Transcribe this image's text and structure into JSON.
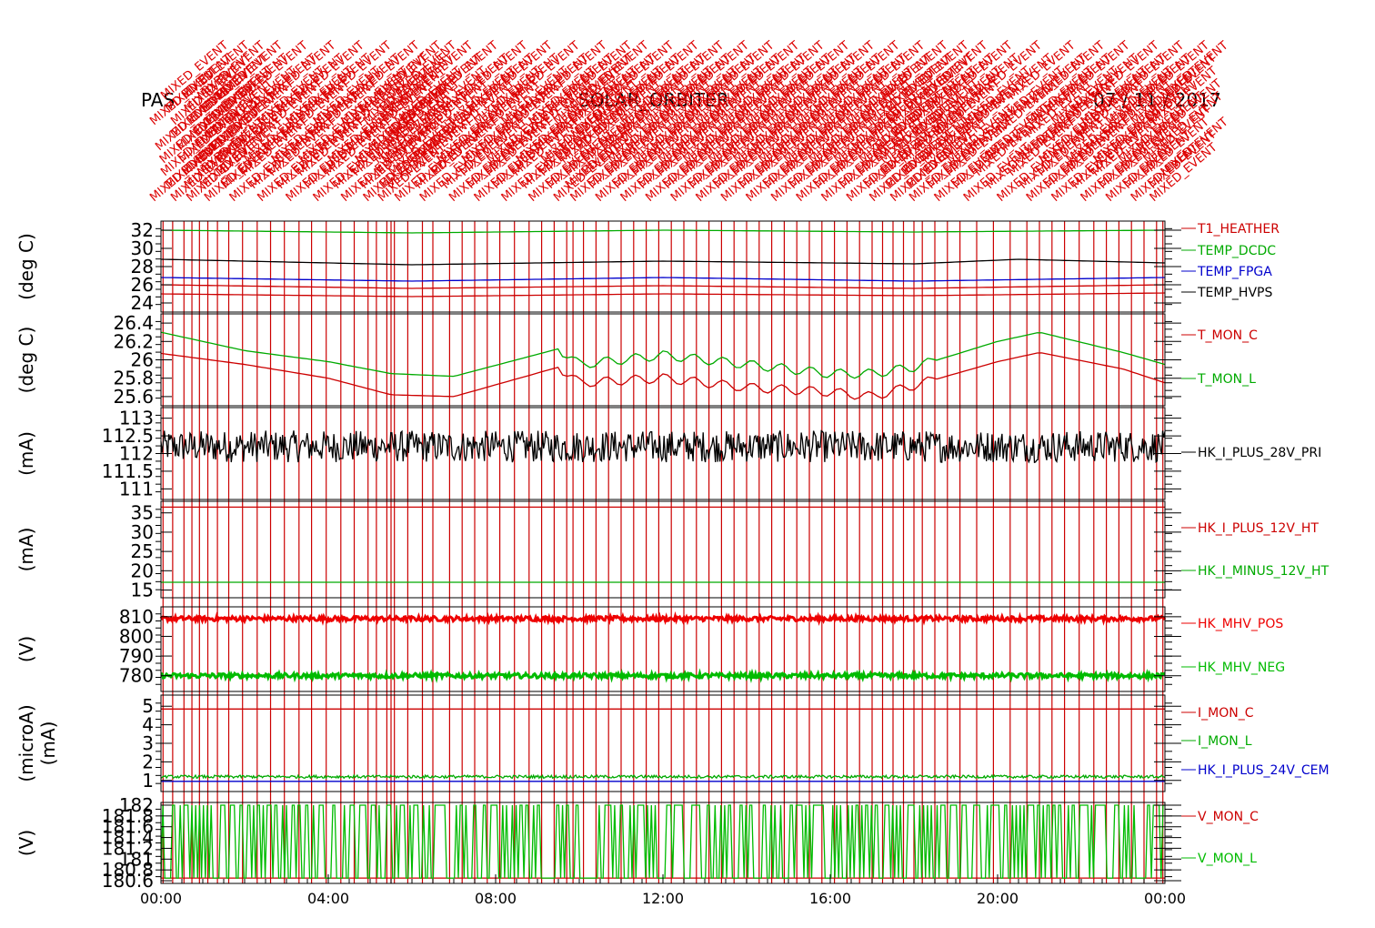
{
  "header": {
    "left": "PAS",
    "center": "SOLAR_ORBITER",
    "right": "07 / 11 / 2017"
  },
  "event_label": "MIXED_EVENT",
  "chart_data": {
    "type": "line",
    "x_ticks": [
      "00:00",
      "04:00",
      "08:00",
      "12:00",
      "16:00",
      "20:00",
      "00:00"
    ],
    "x_range_hours": [
      0,
      24
    ],
    "event_marker_color": "#cc0000",
    "event_times_hours": [
      0.05,
      0.28,
      0.55,
      0.74,
      0.92,
      1.12,
      1.35,
      1.62,
      1.95,
      2.3,
      2.62,
      2.95,
      3.3,
      3.6,
      3.95,
      4.3,
      4.62,
      4.95,
      5.15,
      5.4,
      5.5,
      5.58,
      5.9,
      6.25,
      6.5,
      6.9,
      7.2,
      7.5,
      7.8,
      8.1,
      8.45,
      8.8,
      9.1,
      9.4,
      9.7,
      9.85,
      10.1,
      10.4,
      10.7,
      11.0,
      11.3,
      11.6,
      11.9,
      12.2,
      12.5,
      12.8,
      13.1,
      13.4,
      13.7,
      14.0,
      14.3,
      14.6,
      14.9,
      15.2,
      15.5,
      15.8,
      16.1,
      16.4,
      16.7,
      17.0,
      17.25,
      17.5,
      17.75,
      18.0,
      18.2,
      18.5,
      18.8,
      19.1,
      19.5,
      19.9,
      20.3,
      20.7,
      21.0,
      21.3,
      21.6,
      21.95,
      22.3,
      22.6,
      22.9,
      23.2,
      23.5,
      23.8,
      23.95
    ],
    "panels": [
      {
        "ylabel": "(deg C)",
        "yticks": [
          24,
          26,
          28,
          30,
          32
        ],
        "ylim": [
          23,
          33
        ],
        "series": [
          {
            "name": "T1_HEATHER",
            "color": "#cc0000",
            "points": [
              [
                0,
                25.0
              ],
              [
                6,
                24.7
              ],
              [
                12,
                25.0
              ],
              [
                18,
                24.8
              ],
              [
                24,
                25.1
              ]
            ]
          },
          {
            "name": "TEMP_DCDC",
            "color": "#00aa00",
            "points": [
              [
                0,
                32.0
              ],
              [
                6,
                31.7
              ],
              [
                12,
                32.0
              ],
              [
                18,
                31.8
              ],
              [
                24,
                32.0
              ]
            ]
          },
          {
            "name": "TEMP_FPGA",
            "color": "#0000cc",
            "points": [
              [
                0,
                26.8
              ],
              [
                6,
                26.4
              ],
              [
                12,
                26.8
              ],
              [
                18,
                26.4
              ],
              [
                24,
                26.8
              ]
            ]
          },
          {
            "name": "TEMP_HVPS",
            "color": "#000000",
            "points": [
              [
                0,
                28.8
              ],
              [
                6,
                28.2
              ],
              [
                12,
                28.6
              ],
              [
                18,
                28.3
              ],
              [
                20.5,
                28.8
              ],
              [
                24,
                28.4
              ]
            ]
          },
          {
            "name": "",
            "color": "#cc0000",
            "points": [
              [
                0,
                26.0
              ],
              [
                6,
                25.6
              ],
              [
                12,
                25.9
              ],
              [
                18,
                25.6
              ],
              [
                24,
                26.0
              ]
            ]
          }
        ]
      },
      {
        "ylabel": "(deg C)",
        "yticks": [
          25.6,
          25.8,
          26.0,
          26.2,
          26.4
        ],
        "ylim": [
          25.5,
          26.5
        ],
        "series": [
          {
            "name": "T_MON_C",
            "color": "#cc0000",
            "points": [
              [
                0,
                26.07
              ],
              [
                2,
                25.95
              ],
              [
                4,
                25.8
              ],
              [
                5.5,
                25.62
              ],
              [
                7,
                25.6
              ],
              [
                9.5,
                25.92
              ],
              [
                10,
                25.75
              ],
              [
                12,
                25.8
              ],
              [
                14,
                25.7
              ],
              [
                16,
                25.65
              ],
              [
                17,
                25.6
              ],
              [
                18,
                25.72
              ],
              [
                20,
                25.98
              ],
              [
                21,
                26.08
              ],
              [
                23,
                25.9
              ],
              [
                24,
                25.75
              ]
            ]
          },
          {
            "name": "T_MON_L",
            "color": "#00aa00",
            "points": [
              [
                0,
                26.3
              ],
              [
                2,
                26.1
              ],
              [
                4,
                25.98
              ],
              [
                5.5,
                25.85
              ],
              [
                7,
                25.82
              ],
              [
                9.5,
                26.12
              ],
              [
                10,
                25.95
              ],
              [
                12,
                26.05
              ],
              [
                14,
                25.95
              ],
              [
                16,
                25.85
              ],
              [
                17,
                25.85
              ],
              [
                18,
                25.92
              ],
              [
                20,
                26.2
              ],
              [
                21,
                26.3
              ],
              [
                23,
                26.08
              ],
              [
                24,
                25.95
              ]
            ]
          }
        ]
      },
      {
        "ylabel": "(mA)",
        "yticks": [
          111.0,
          111.5,
          112.0,
          112.5,
          113.0
        ],
        "ylim": [
          110.7,
          113.3
        ],
        "series": [
          {
            "name": "HK_I_PLUS_28V_PRI",
            "color": "#000000",
            "mean": 112.2,
            "noise": 0.45
          }
        ]
      },
      {
        "ylabel": "(mA)",
        "yticks": [
          15,
          20,
          25,
          30,
          35
        ],
        "ylim": [
          13,
          38
        ],
        "series": [
          {
            "name": "HK_I_PLUS_12V_HT",
            "color": "#cc0000",
            "points": [
              [
                0,
                36.5
              ],
              [
                24,
                36.5
              ]
            ]
          },
          {
            "name": "HK_I_MINUS_12V_HT",
            "color": "#00aa00",
            "points": [
              [
                0,
                17.0
              ],
              [
                24,
                17.0
              ]
            ]
          }
        ]
      },
      {
        "ylabel": "(V)",
        "yticks": [
          780,
          790,
          800,
          810
        ],
        "ylim": [
          772,
          815
        ],
        "series": [
          {
            "name": "HK_MHV_POS",
            "color": "#ee0000",
            "mean": 809,
            "noise": 1.2
          },
          {
            "name": "HK_MHV_NEG",
            "color": "#00bb00",
            "mean": 780,
            "noise": 1.2
          }
        ]
      },
      {
        "ylabel": "(microA)",
        "ylabel2": "(mA)",
        "yticks": [
          1,
          2,
          3,
          4,
          5
        ],
        "ylim": [
          0.4,
          5.6
        ],
        "series": [
          {
            "name": "I_MON_C",
            "color": "#cc0000",
            "points": [
              [
                0,
                4.85
              ],
              [
                24,
                4.85
              ]
            ]
          },
          {
            "name": "I_MON_L",
            "color": "#00aa00",
            "mean": 1.2,
            "noise": 0.08
          },
          {
            "name": "HK_I_PLUS_24V_CEM",
            "color": "#0000cc",
            "points": [
              [
                0,
                0.95
              ],
              [
                24,
                0.95
              ]
            ]
          }
        ]
      },
      {
        "ylabel": "(V)",
        "yticks": [
          180.6,
          180.8,
          181.0,
          181.2,
          181.4,
          181.6,
          181.8,
          182.0
        ],
        "ylim": [
          180.55,
          182.05
        ],
        "series": [
          {
            "name": "V_MON_C",
            "color": "#cc0000",
            "points": [
              [
                0,
                180.65
              ],
              [
                24,
                180.65
              ]
            ]
          },
          {
            "name": "V_MON_L",
            "color": "#00bb00",
            "toggle": [
              180.65,
              182.0
            ]
          }
        ]
      }
    ]
  }
}
